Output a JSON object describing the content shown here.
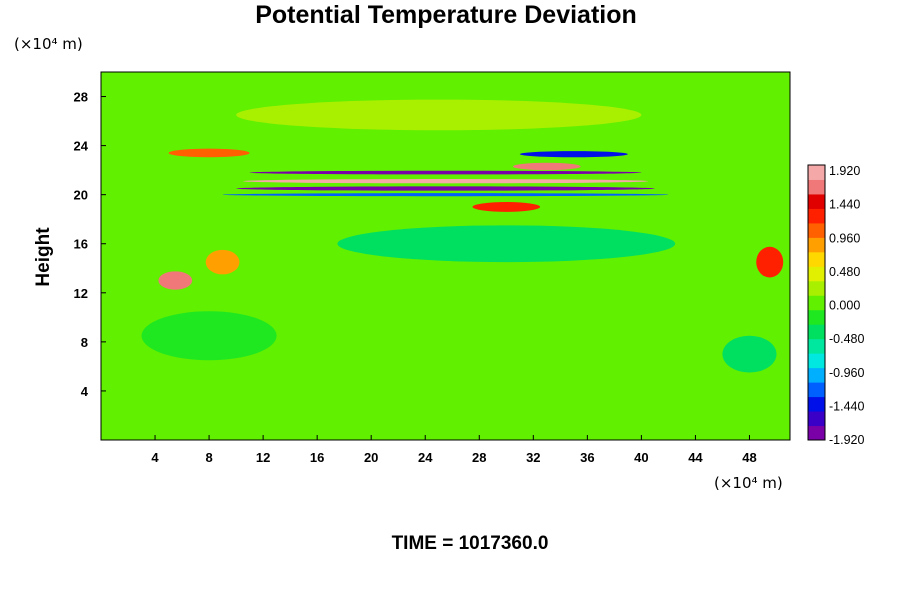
{
  "chart_data": {
    "type": "heatmap",
    "title": "Potential Temperature Deviation",
    "xlabel": "",
    "ylabel": "Height",
    "x_unit": "(×10⁴ m)",
    "y_unit": "(×10⁴ m)",
    "xlim": [
      0,
      51
    ],
    "ylim": [
      0,
      30
    ],
    "x_ticks": [
      4,
      8,
      12,
      16,
      20,
      24,
      28,
      32,
      36,
      40,
      44,
      48
    ],
    "y_ticks": [
      4,
      8,
      12,
      16,
      20,
      24,
      28
    ],
    "colorbar": {
      "min": -1.92,
      "max": 1.92,
      "labels": [
        "1.920",
        "1.440",
        "0.960",
        "0.480",
        "0.000",
        "-0.480",
        "-0.960",
        "-1.440",
        "-1.920"
      ],
      "colors": [
        "#7a00a8",
        "#3a00c8",
        "#0010e8",
        "#0060ff",
        "#00b0ff",
        "#00e8e0",
        "#00e8a0",
        "#00e060",
        "#20e820",
        "#60f000",
        "#a8f000",
        "#e0f000",
        "#ffd800",
        "#ffa000",
        "#ff6000",
        "#ff2000",
        "#e00000",
        "#f07878",
        "#f4a8a8"
      ]
    },
    "features": [
      {
        "x": 25,
        "y": 26.5,
        "dx": 30,
        "dy": 2.5,
        "value": 0.15
      },
      {
        "x": 8,
        "y": 23.4,
        "dx": 6,
        "dy": 0.7,
        "value": 1.1
      },
      {
        "x": 25.5,
        "y": 21.8,
        "dx": 29,
        "dy": 0.3,
        "value": -1.9
      },
      {
        "x": 25.5,
        "y": 21.1,
        "dx": 30,
        "dy": 0.35,
        "value": 1.9
      },
      {
        "x": 25.5,
        "y": 20.5,
        "dx": 31,
        "dy": 0.35,
        "value": -1.9
      },
      {
        "x": 25.5,
        "y": 20.0,
        "dx": 33,
        "dy": 0.25,
        "value": -1.3
      },
      {
        "x": 33,
        "y": 22.3,
        "dx": 5,
        "dy": 0.6,
        "value": 1.7
      },
      {
        "x": 35,
        "y": 23.3,
        "dx": 8,
        "dy": 0.5,
        "value": -1.4
      },
      {
        "x": 30,
        "y": 19.0,
        "dx": 5,
        "dy": 0.8,
        "value": 1.2
      },
      {
        "x": 5.5,
        "y": 13.0,
        "dx": 2.5,
        "dy": 1.5,
        "value": 1.6
      },
      {
        "x": 9,
        "y": 14.5,
        "dx": 2.5,
        "dy": 2.0,
        "value": 0.9
      },
      {
        "x": 49.5,
        "y": 14.5,
        "dx": 2.0,
        "dy": 2.5,
        "value": 1.2
      },
      {
        "x": 8,
        "y": 8.5,
        "dx": 10,
        "dy": 4,
        "value": -0.3
      },
      {
        "x": 30,
        "y": 16,
        "dx": 25,
        "dy": 3,
        "value": -0.45
      },
      {
        "x": 48,
        "y": 7,
        "dx": 4,
        "dy": 3,
        "value": -0.5
      }
    ]
  },
  "footer": {
    "time_label": "TIME = 1017360.0"
  }
}
